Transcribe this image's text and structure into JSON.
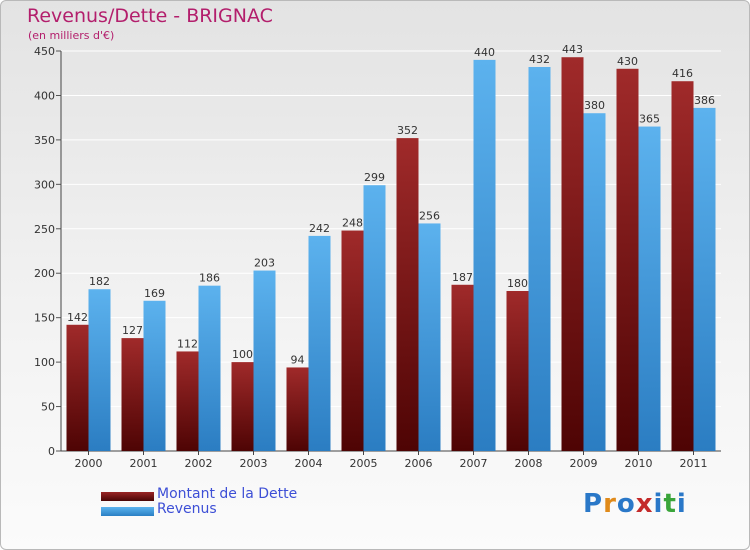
{
  "title": "Revenus/Dette - BRIGNAC",
  "subtitle": "(en milliers d'€)",
  "legend": [
    "Montant de la Dette",
    "Revenus"
  ],
  "logo": {
    "text": "Proxiti",
    "letters": [
      "P",
      "r",
      "o",
      "x",
      "i",
      "t",
      "i"
    ],
    "colors": [
      "#2a78c8",
      "#e08a1a",
      "#2a78c8",
      "#c42a2a",
      "#2a78c8",
      "#3aa53a",
      "#2a78c8"
    ]
  },
  "colors": {
    "dette": "#7a1515",
    "revenus": "#3d9ee2",
    "title": "#b31e6c",
    "legend_text": "#3d4fd6"
  },
  "chart_data": {
    "type": "bar",
    "title": "Revenus/Dette - BRIGNAC",
    "subtitle": "(en milliers d'€)",
    "categories": [
      "2000",
      "2001",
      "2002",
      "2003",
      "2004",
      "2005",
      "2006",
      "2007",
      "2008",
      "2009",
      "2010",
      "2011"
    ],
    "series": [
      {
        "name": "Montant de la Dette",
        "values": [
          142,
          127,
          112,
          100,
          94,
          248,
          352,
          187,
          180,
          443,
          430,
          416
        ]
      },
      {
        "name": "Revenus",
        "values": [
          182,
          169,
          186,
          203,
          242,
          299,
          256,
          440,
          432,
          380,
          365,
          386
        ]
      }
    ],
    "ylim": [
      0,
      450
    ],
    "yticks": [
      0,
      50,
      100,
      150,
      200,
      250,
      300,
      350,
      400,
      450
    ],
    "grid": true,
    "legend_position": "bottom-left"
  }
}
